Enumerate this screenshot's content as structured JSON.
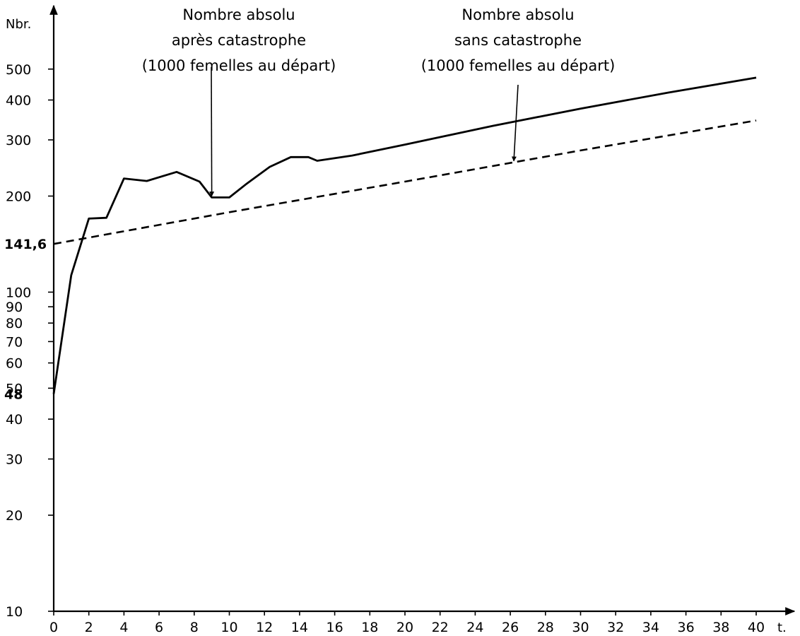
{
  "chart_data": {
    "type": "line",
    "y_scale": "log",
    "ylabel": "Nbr.",
    "xlabel": "t.",
    "xlim": [
      0,
      40
    ],
    "ylim": [
      10,
      600
    ],
    "x_ticks": [
      0,
      2,
      4,
      6,
      8,
      10,
      12,
      14,
      16,
      18,
      20,
      22,
      24,
      26,
      28,
      30,
      32,
      34,
      36,
      38,
      40
    ],
    "x_tick_labels": [
      "0",
      "2",
      "4",
      "6",
      "8",
      "10",
      "12",
      "14",
      "16",
      "18",
      "20",
      "22",
      "24",
      "26",
      "28",
      "30",
      "32",
      "34",
      "36",
      "38",
      "40"
    ],
    "y_ticks": [
      {
        "value": 10,
        "label": "10",
        "bold": false
      },
      {
        "value": 20,
        "label": "20",
        "bold": false
      },
      {
        "value": 30,
        "label": "30",
        "bold": false
      },
      {
        "value": 40,
        "label": "40",
        "bold": false
      },
      {
        "value": 48,
        "label": "48",
        "bold": true
      },
      {
        "value": 50,
        "label": "50",
        "bold": false
      },
      {
        "value": 60,
        "label": "60",
        "bold": false
      },
      {
        "value": 70,
        "label": "70",
        "bold": false
      },
      {
        "value": 80,
        "label": "80",
        "bold": false
      },
      {
        "value": 90,
        "label": "90",
        "bold": false
      },
      {
        "value": 100,
        "label": "100",
        "bold": false
      },
      {
        "value": 141.6,
        "label": "141,6",
        "bold": true
      },
      {
        "value": 200,
        "label": "200",
        "bold": false
      },
      {
        "value": 300,
        "label": "300",
        "bold": false
      },
      {
        "value": 400,
        "label": "400",
        "bold": false
      },
      {
        "value": 500,
        "label": "500",
        "bold": false
      }
    ],
    "series": [
      {
        "style": "solid",
        "x": [
          0,
          1,
          2,
          3,
          4,
          5.3,
          7,
          8.3,
          9,
          10,
          11,
          12.3,
          13.5,
          14.5,
          15,
          17,
          20,
          25,
          30,
          35,
          40
        ],
        "y": [
          48,
          113,
          170,
          171,
          227,
          223,
          238,
          222,
          198,
          198,
          219,
          247,
          265,
          265,
          258,
          268,
          290,
          332,
          376,
          422,
          470
        ]
      },
      {
        "style": "dashed",
        "x": [
          0,
          10,
          20,
          30,
          40
        ],
        "y": [
          141.6,
          178,
          222,
          278,
          345
        ]
      }
    ],
    "annotations": [
      {
        "lines": [
          "Nombre absolu",
          "après catastrophe",
          "(1000 femelles au départ)"
        ],
        "points_to": {
          "x": 9,
          "y": 198
        }
      },
      {
        "lines": [
          "Nombre absolu",
          "sans catastrophe",
          "(1000 femelles au départ)"
        ],
        "points_to": {
          "x": 26.2,
          "y": 255
        }
      }
    ],
    "grid": false,
    "legend": "none"
  }
}
